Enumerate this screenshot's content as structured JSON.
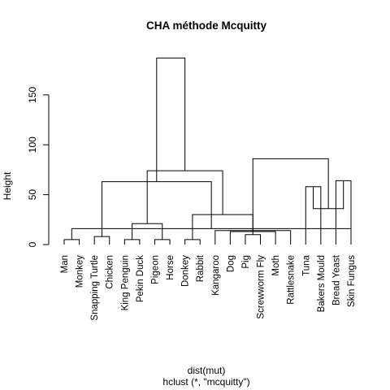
{
  "chart_data": {
    "type": "dendrogram",
    "title": "CHA méthode Mcquitty",
    "xlabel": "dist(mut)",
    "sublabel": "hclust (*, \"mcquitty\")",
    "ylabel": "Height",
    "ylim": [
      0,
      185
    ],
    "yticks": [
      0,
      50,
      100,
      150
    ],
    "grid": false,
    "leaves": [
      "Man",
      "Monkey",
      "Snapping Turtle",
      "Chicken",
      "King Penguin",
      "Pekin Duck",
      "Pigeon",
      "Horse",
      "Donkey",
      "Rabbit",
      "Kangaroo",
      "Dog",
      "Pig",
      "Screwworm Fly",
      "Moth",
      "Rattlesnake",
      "Tuna",
      "Bakers Mould",
      "Bread Yeast",
      "Skin Fungus"
    ],
    "merges": [
      {
        "left": 1,
        "right": 2,
        "height": 5
      },
      {
        "left": 5,
        "right": 6,
        "height": 5
      },
      {
        "left": 7,
        "right": 8,
        "height": 5
      },
      {
        "left": 9,
        "right": 10,
        "height": 5
      },
      {
        "left": 13,
        "right": 14,
        "height": 10
      },
      {
        "left": 12,
        "right": 15,
        "height": 13
      },
      {
        "left": 11,
        "right": 16,
        "height": 14
      },
      {
        "left": 17,
        "right": 18,
        "height": 58
      },
      {
        "left": 19,
        "right": 20,
        "height": 64
      },
      {
        "left": 3,
        "right": 4,
        "height": 8
      },
      {
        "left": 20,
        "right": 21,
        "height": 16
      },
      {
        "left": 22,
        "right": 23,
        "height": 21
      },
      {
        "left": 24,
        "right": 25,
        "height": 30
      },
      {
        "left": 26,
        "right": 27,
        "height": 30
      },
      {
        "left": 28,
        "right": 29,
        "height": 36
      },
      {
        "left": 30,
        "right": 31,
        "height": 63
      },
      {
        "left": 32,
        "right": 33,
        "height": 74
      },
      {
        "left": 34,
        "right": 35,
        "height": 86
      },
      {
        "left": 36,
        "right": 37,
        "height": 187
      }
    ]
  }
}
